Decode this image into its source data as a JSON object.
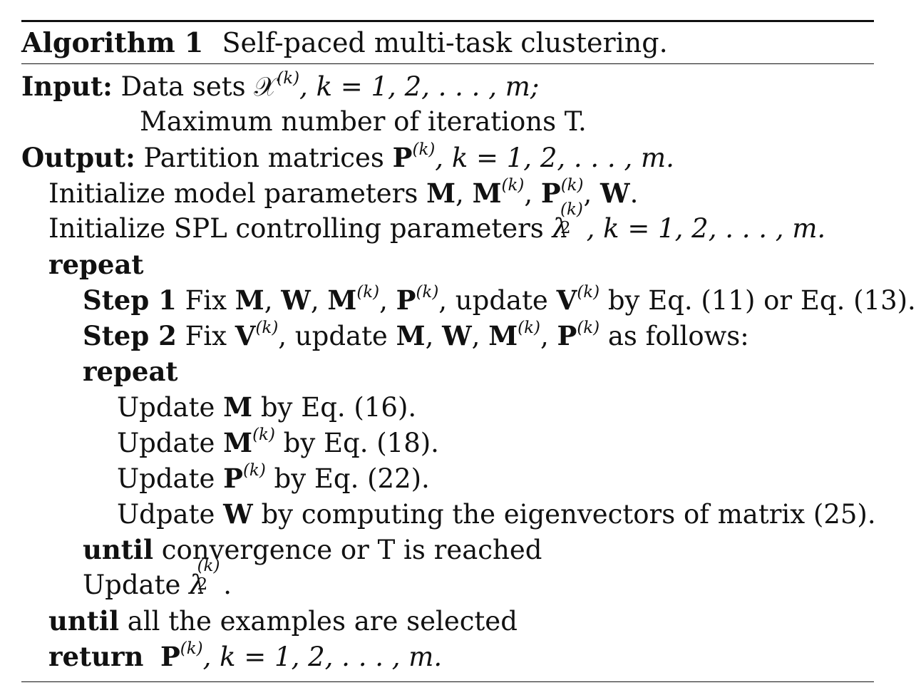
{
  "algorithm": {
    "label": "Algorithm 1",
    "title": "Self-paced multi-task clustering.",
    "input_label": "Input:",
    "input_text": "Data sets 𝒳",
    "input_sup": "(k)",
    "input_tail": ",  k = 1, 2, . . . , m;",
    "input_line2": "Maximum number of iterations T.",
    "output_label": "Output:",
    "output_text": "Partition matrices ",
    "output_P": "P",
    "output_sup": "(k)",
    "output_tail": ", k = 1, 2, . . . , m.",
    "init1_text": "Initialize model parameters ",
    "init1_math": {
      "M": "M",
      "sep": ", ",
      "Mk": "M",
      "Pk": "P",
      "W": "W",
      "sup": "(k)",
      "end": "."
    },
    "init2_text": "Initialize SPL controlling parameters ",
    "init2_lambda": "λ",
    "init2_sup": "(k)",
    "init2_sub": "2",
    "init2_tail": ",  k = 1, 2, . . . , m.",
    "repeat_kw": "repeat",
    "step1_kw": "Step 1",
    "step1_text_a": " Fix ",
    "step1_text_b": ", update ",
    "step1_V": "V",
    "step1_tail": " by Eq. (11) or Eq. (13).",
    "step2_kw": "Step 2",
    "step2_text_a": " Fix ",
    "step2_V": "V",
    "step2_text_b": ", update ",
    "step2_tail": " as follows:",
    "inner_repeat_kw": "repeat",
    "update_word": "Update ",
    "upd_M_tail": " by Eq. (16).",
    "upd_Mk_tail": " by Eq. (18).",
    "upd_Pk_tail": " by Eq. (22).",
    "udpate_word": "Udpate ",
    "upd_W_tail": " by computing the eigenvectors of matrix (25).",
    "until_kw": "until",
    "inner_until_text": " convergence or T is reached",
    "update_lambda_word": "Update ",
    "update_lambda_end": ".",
    "outer_until_text": " all the examples are selected",
    "return_kw": "return",
    "return_tail": ", k = 1, 2, . . . , m."
  }
}
